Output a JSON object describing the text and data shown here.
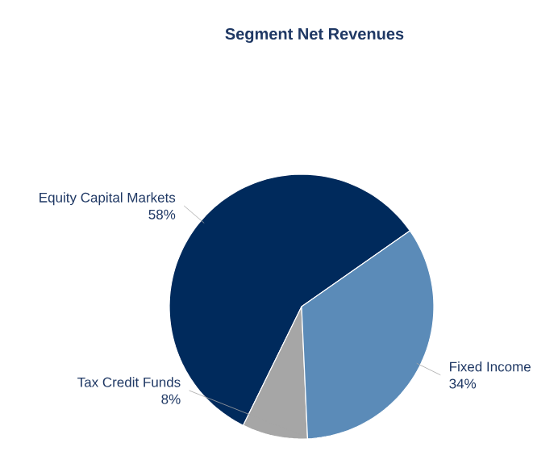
{
  "chart_data": {
    "type": "pie",
    "title": "Segment Net Revenues",
    "categories": [
      "Equity Capital Markets",
      "Tax Credit Funds",
      "Fixed Income"
    ],
    "values": [
      58,
      8,
      34
    ],
    "value_labels": [
      "58%",
      "8%",
      "34%"
    ],
    "colors": [
      "#002a5c",
      "#a6a6a6",
      "#5b8bb8"
    ]
  }
}
